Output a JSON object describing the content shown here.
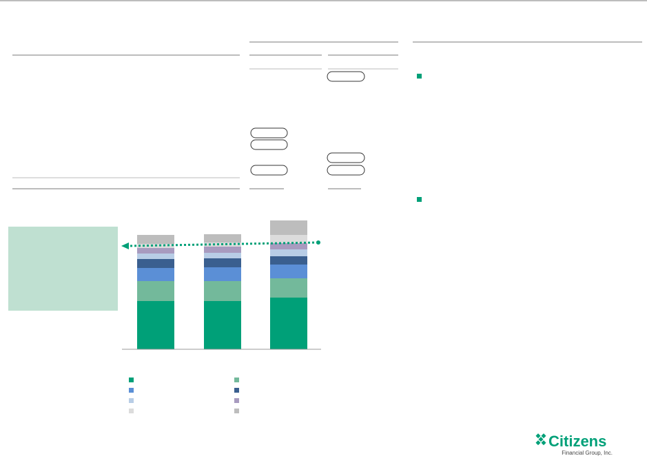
{
  "chart_data": {
    "type": "stacked_bar",
    "categories": [
      null,
      null,
      null
    ],
    "ylim": [
      0,
      200
    ],
    "series": [
      {
        "color": "#00a078",
        "values": [
          70,
          70,
          75
        ]
      },
      {
        "color": "#73b99b",
        "values": [
          29,
          29,
          28
        ]
      },
      {
        "color": "#5b8fd6",
        "values": [
          19,
          20,
          20
        ]
      },
      {
        "color": "#3a5f8f",
        "values": [
          13,
          13,
          12
        ]
      },
      {
        "color": "#b8cde6",
        "values": [
          8,
          8,
          10
        ]
      },
      {
        "color": "#a89bbf",
        "values": [
          8,
          9,
          9
        ]
      },
      {
        "color": "#dcdcdc",
        "values": [
          6,
          6,
          12
        ]
      },
      {
        "color": "#bdbdbd",
        "values": [
          13,
          12,
          21
        ]
      }
    ]
  },
  "logo": {
    "name": "Citizens",
    "tagline": "Financial Group, Inc."
  }
}
